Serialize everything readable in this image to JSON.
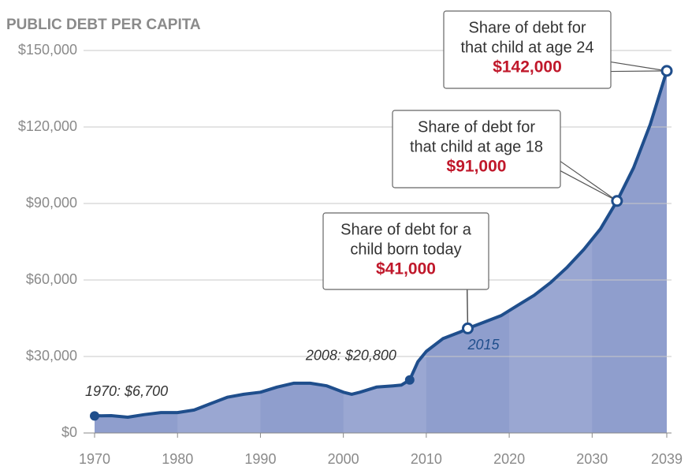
{
  "chart_data": {
    "type": "area",
    "title": "PUBLIC DEBT PER CAPITA",
    "x": [
      1970,
      1972,
      1974,
      1976,
      1978,
      1980,
      1982,
      1984,
      1986,
      1988,
      1990,
      1992,
      1994,
      1996,
      1998,
      2000,
      2001,
      2002,
      2004,
      2006,
      2007,
      2008,
      2009,
      2010,
      2012,
      2014,
      2015,
      2017,
      2019,
      2021,
      2023,
      2025,
      2027,
      2029,
      2031,
      2033,
      2035,
      2037,
      2039
    ],
    "values": [
      6700,
      6800,
      6200,
      7200,
      8000,
      8000,
      9000,
      11500,
      14000,
      15200,
      16000,
      18000,
      19500,
      19500,
      18500,
      16000,
      15200,
      16000,
      18000,
      18500,
      18800,
      20800,
      28000,
      32000,
      37000,
      39500,
      41000,
      43500,
      46000,
      50000,
      54000,
      59000,
      65000,
      72000,
      80000,
      91000,
      104000,
      121000,
      142000
    ],
    "color": "#1f4e8c",
    "fill": "#8f9ecd",
    "xlim": [
      1970,
      2039
    ],
    "xticks": [
      1970,
      1980,
      1990,
      2000,
      2010,
      2020,
      2030,
      2039
    ],
    "ylim": [
      0,
      150000
    ],
    "yticks": [
      {
        "value": 0,
        "label": "$0"
      },
      {
        "value": 30000,
        "label": "$30,000"
      },
      {
        "value": 60000,
        "label": "$60,000"
      },
      {
        "value": 90000,
        "label": "$90,000"
      },
      {
        "value": 120000,
        "label": "$120,000"
      },
      {
        "value": 150000,
        "label": "$150,000"
      }
    ],
    "grid": true,
    "point_labels": [
      {
        "x": 1970,
        "label": "1970: $6,700"
      },
      {
        "x": 2008,
        "label": "2008: $20,800"
      },
      {
        "x": 2015,
        "label": "2015"
      }
    ],
    "callouts": [
      {
        "x": 2015,
        "lines": [
          "Share of debt for a",
          "child born today"
        ],
        "value_label": "$41,000"
      },
      {
        "x": 2033,
        "lines": [
          "Share of debt for",
          "that child at age 18"
        ],
        "value_label": "$91,000"
      },
      {
        "x": 2039,
        "lines": [
          "Share of debt for",
          "that child at age 24"
        ],
        "value_label": "$142,000"
      }
    ]
  }
}
